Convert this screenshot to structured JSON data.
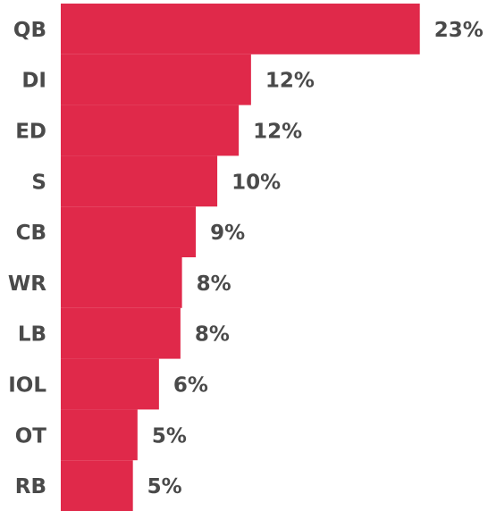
{
  "chart_data": {
    "type": "hbar",
    "categories": [
      "QB",
      "DI",
      "ED",
      "S",
      "CB",
      "WR",
      "LB",
      "IOL",
      "OT",
      "RB"
    ],
    "values": [
      23.4,
      12.4,
      11.6,
      10.2,
      8.8,
      7.9,
      7.8,
      6.4,
      5.0,
      4.7
    ],
    "value_labels": [
      "23%",
      "12%",
      "12%",
      "10%",
      "9%",
      "8%",
      "8%",
      "6%",
      "5%",
      "5%"
    ],
    "color": "#e0294a",
    "xlim": [
      0,
      24
    ]
  }
}
